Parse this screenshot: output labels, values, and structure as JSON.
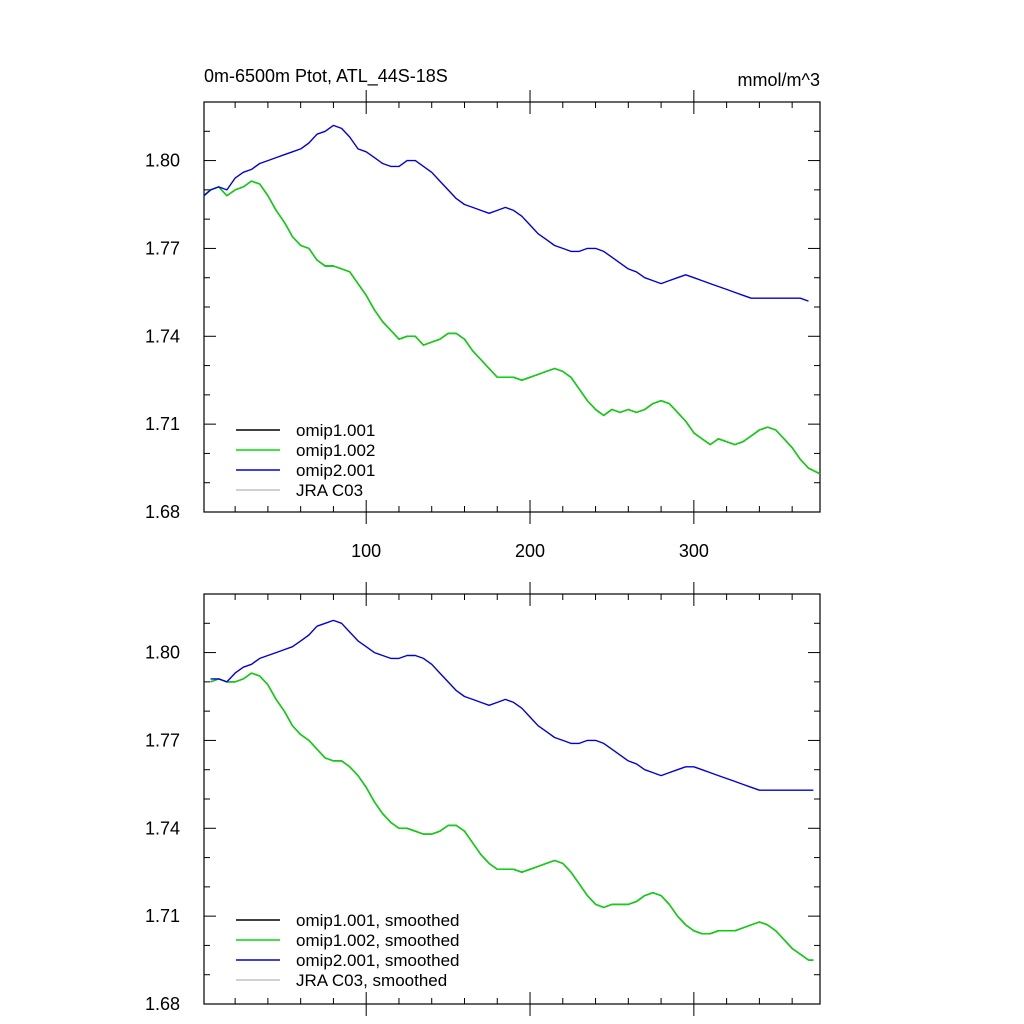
{
  "chart_data": [
    {
      "type": "line",
      "title": "0m-6500m Ptot, ATL_44S-18S",
      "units": "mmol/m^3",
      "xlabel": "",
      "ylabel": "",
      "xlim": [
        1,
        377
      ],
      "ylim": [
        1.68,
        1.82
      ],
      "xticks": [
        100,
        200,
        300
      ],
      "xtick_labels": [
        "100",
        "200",
        "300"
      ],
      "yticks": [
        1.68,
        1.71,
        1.74,
        1.77,
        1.8
      ],
      "ytick_labels": [
        "1.68",
        "1.71",
        "1.74",
        "1.77",
        "1.80"
      ],
      "grid": false,
      "legend_placement": "bottom-left",
      "series": [
        {
          "name": "omip1.001",
          "color": "#000000",
          "x": [
            1,
            5,
            10,
            15,
            20,
            25,
            30,
            35,
            40,
            45,
            50,
            55,
            60,
            65,
            70,
            75,
            80,
            85,
            90,
            95,
            100,
            105,
            110,
            115,
            120,
            125,
            130,
            135,
            140,
            145,
            150,
            155,
            160,
            165,
            170,
            175,
            180,
            185,
            190,
            195,
            200,
            205,
            210,
            215,
            220,
            225,
            230,
            235,
            240,
            245,
            250,
            255,
            260,
            265,
            270,
            275,
            280,
            285,
            290,
            295,
            300,
            305,
            310,
            315,
            320,
            325,
            330,
            335,
            340,
            345,
            350,
            355,
            360,
            365,
            370,
            377
          ],
          "y": [
            1.788,
            1.79,
            1.791,
            1.788,
            1.79,
            1.791,
            1.793,
            1.792,
            1.788,
            1.783,
            1.779,
            1.774,
            1.771,
            1.77,
            1.766,
            1.764,
            1.764,
            1.763,
            1.762,
            1.758,
            1.754,
            1.749,
            1.745,
            1.742,
            1.739,
            1.74,
            1.74,
            1.737,
            1.738,
            1.739,
            1.741,
            1.741,
            1.739,
            1.735,
            1.732,
            1.729,
            1.726,
            1.726,
            1.726,
            1.725,
            1.726,
            1.727,
            1.728,
            1.729,
            1.728,
            1.726,
            1.722,
            1.718,
            1.715,
            1.713,
            1.715,
            1.714,
            1.715,
            1.714,
            1.715,
            1.717,
            1.718,
            1.717,
            1.714,
            1.711,
            1.707,
            1.705,
            1.703,
            1.705,
            1.704,
            1.703,
            1.704,
            1.706,
            1.708,
            1.709,
            1.708,
            1.705,
            1.702,
            1.698,
            1.695,
            1.693
          ]
        },
        {
          "name": "omip1.002",
          "color": "#00dd00",
          "x": [
            1,
            5,
            10,
            15,
            20,
            25,
            30,
            35,
            40,
            45,
            50,
            55,
            60,
            65,
            70,
            75,
            80,
            85,
            90,
            95,
            100,
            105,
            110,
            115,
            120,
            125,
            130,
            135,
            140,
            145,
            150,
            155,
            160,
            165,
            170,
            175,
            180,
            185,
            190,
            195,
            200,
            205,
            210,
            215,
            220,
            225,
            230,
            235,
            240,
            245,
            250,
            255,
            260,
            265,
            270,
            275,
            280,
            285,
            290,
            295,
            300,
            305,
            310,
            315,
            320,
            325,
            330,
            335,
            340,
            345,
            350,
            355,
            360,
            365,
            370,
            377
          ],
          "y": [
            1.788,
            1.79,
            1.791,
            1.788,
            1.79,
            1.791,
            1.793,
            1.792,
            1.788,
            1.783,
            1.779,
            1.774,
            1.771,
            1.77,
            1.766,
            1.764,
            1.764,
            1.763,
            1.762,
            1.758,
            1.754,
            1.749,
            1.745,
            1.742,
            1.739,
            1.74,
            1.74,
            1.737,
            1.738,
            1.739,
            1.741,
            1.741,
            1.739,
            1.735,
            1.732,
            1.729,
            1.726,
            1.726,
            1.726,
            1.725,
            1.726,
            1.727,
            1.728,
            1.729,
            1.728,
            1.726,
            1.722,
            1.718,
            1.715,
            1.713,
            1.715,
            1.714,
            1.715,
            1.714,
            1.715,
            1.717,
            1.718,
            1.717,
            1.714,
            1.711,
            1.707,
            1.705,
            1.703,
            1.705,
            1.704,
            1.703,
            1.704,
            1.706,
            1.708,
            1.709,
            1.708,
            1.705,
            1.702,
            1.698,
            1.695,
            1.693
          ]
        },
        {
          "name": "omip2.001",
          "color": "#0000dd",
          "x": [
            1,
            5,
            10,
            15,
            20,
            25,
            30,
            35,
            40,
            45,
            50,
            55,
            60,
            65,
            70,
            75,
            80,
            85,
            90,
            95,
            100,
            105,
            110,
            115,
            120,
            125,
            130,
            135,
            140,
            145,
            150,
            155,
            160,
            165,
            170,
            175,
            180,
            185,
            190,
            195,
            200,
            205,
            210,
            215,
            220,
            225,
            230,
            235,
            240,
            245,
            250,
            255,
            260,
            265,
            270,
            275,
            280,
            285,
            290,
            295,
            300,
            305,
            310,
            315,
            320,
            325,
            330,
            335,
            340,
            345,
            350,
            355,
            360,
            365,
            370
          ],
          "y": [
            1.788,
            1.79,
            1.791,
            1.79,
            1.794,
            1.796,
            1.797,
            1.799,
            1.8,
            1.801,
            1.802,
            1.803,
            1.804,
            1.806,
            1.809,
            1.81,
            1.812,
            1.811,
            1.808,
            1.804,
            1.803,
            1.801,
            1.799,
            1.798,
            1.798,
            1.8,
            1.8,
            1.798,
            1.796,
            1.793,
            1.79,
            1.787,
            1.785,
            1.784,
            1.783,
            1.782,
            1.783,
            1.784,
            1.783,
            1.781,
            1.778,
            1.775,
            1.773,
            1.771,
            1.77,
            1.769,
            1.769,
            1.77,
            1.77,
            1.769,
            1.767,
            1.765,
            1.763,
            1.762,
            1.76,
            1.759,
            1.758,
            1.759,
            1.76,
            1.761,
            1.76,
            1.759,
            1.758,
            1.757,
            1.756,
            1.755,
            1.754,
            1.753,
            1.753,
            1.753,
            1.753,
            1.753,
            1.753,
            1.753,
            1.752
          ]
        },
        {
          "name": "JRA C03",
          "color": "#c0c0c0",
          "x": [],
          "y": []
        }
      ]
    },
    {
      "type": "line",
      "title": "",
      "units": "",
      "xlabel": "",
      "ylabel": "",
      "xlim": [
        1,
        377
      ],
      "ylim": [
        1.68,
        1.82
      ],
      "xticks": [
        100,
        200,
        300
      ],
      "xtick_labels": [],
      "yticks": [
        1.68,
        1.71,
        1.74,
        1.77,
        1.8
      ],
      "ytick_labels": [
        "1.68",
        "1.71",
        "1.74",
        "1.77",
        "1.80"
      ],
      "grid": false,
      "legend_placement": "bottom-left",
      "series": [
        {
          "name": "omip1.001, smoothed",
          "color": "#000000",
          "x": [
            5,
            10,
            15,
            20,
            25,
            30,
            35,
            40,
            45,
            50,
            55,
            60,
            65,
            70,
            75,
            80,
            85,
            90,
            95,
            100,
            105,
            110,
            115,
            120,
            125,
            130,
            135,
            140,
            145,
            150,
            155,
            160,
            165,
            170,
            175,
            180,
            185,
            190,
            195,
            200,
            205,
            210,
            215,
            220,
            225,
            230,
            235,
            240,
            245,
            250,
            255,
            260,
            265,
            270,
            275,
            280,
            285,
            290,
            295,
            300,
            305,
            310,
            315,
            320,
            325,
            330,
            335,
            340,
            345,
            350,
            355,
            360,
            365,
            370,
            373
          ],
          "y": [
            1.79,
            1.791,
            1.79,
            1.79,
            1.791,
            1.793,
            1.792,
            1.789,
            1.784,
            1.78,
            1.775,
            1.772,
            1.77,
            1.767,
            1.764,
            1.763,
            1.763,
            1.761,
            1.758,
            1.754,
            1.749,
            1.745,
            1.742,
            1.74,
            1.74,
            1.739,
            1.738,
            1.738,
            1.739,
            1.741,
            1.741,
            1.739,
            1.735,
            1.731,
            1.728,
            1.726,
            1.726,
            1.726,
            1.725,
            1.726,
            1.727,
            1.728,
            1.729,
            1.728,
            1.725,
            1.721,
            1.717,
            1.714,
            1.713,
            1.714,
            1.714,
            1.714,
            1.715,
            1.717,
            1.718,
            1.717,
            1.714,
            1.71,
            1.707,
            1.705,
            1.704,
            1.704,
            1.705,
            1.705,
            1.705,
            1.706,
            1.707,
            1.708,
            1.707,
            1.705,
            1.702,
            1.699,
            1.697,
            1.695,
            1.695
          ]
        },
        {
          "name": "omip1.002, smoothed",
          "color": "#00dd00",
          "x": [
            5,
            10,
            15,
            20,
            25,
            30,
            35,
            40,
            45,
            50,
            55,
            60,
            65,
            70,
            75,
            80,
            85,
            90,
            95,
            100,
            105,
            110,
            115,
            120,
            125,
            130,
            135,
            140,
            145,
            150,
            155,
            160,
            165,
            170,
            175,
            180,
            185,
            190,
            195,
            200,
            205,
            210,
            215,
            220,
            225,
            230,
            235,
            240,
            245,
            250,
            255,
            260,
            265,
            270,
            275,
            280,
            285,
            290,
            295,
            300,
            305,
            310,
            315,
            320,
            325,
            330,
            335,
            340,
            345,
            350,
            355,
            360,
            365,
            370,
            373
          ],
          "y": [
            1.79,
            1.791,
            1.79,
            1.79,
            1.791,
            1.793,
            1.792,
            1.789,
            1.784,
            1.78,
            1.775,
            1.772,
            1.77,
            1.767,
            1.764,
            1.763,
            1.763,
            1.761,
            1.758,
            1.754,
            1.749,
            1.745,
            1.742,
            1.74,
            1.74,
            1.739,
            1.738,
            1.738,
            1.739,
            1.741,
            1.741,
            1.739,
            1.735,
            1.731,
            1.728,
            1.726,
            1.726,
            1.726,
            1.725,
            1.726,
            1.727,
            1.728,
            1.729,
            1.728,
            1.725,
            1.721,
            1.717,
            1.714,
            1.713,
            1.714,
            1.714,
            1.714,
            1.715,
            1.717,
            1.718,
            1.717,
            1.714,
            1.71,
            1.707,
            1.705,
            1.704,
            1.704,
            1.705,
            1.705,
            1.705,
            1.706,
            1.707,
            1.708,
            1.707,
            1.705,
            1.702,
            1.699,
            1.697,
            1.695,
            1.695
          ]
        },
        {
          "name": "omip2.001, smoothed",
          "color": "#0000dd",
          "x": [
            5,
            10,
            15,
            20,
            25,
            30,
            35,
            40,
            45,
            50,
            55,
            60,
            65,
            70,
            75,
            80,
            85,
            90,
            95,
            100,
            105,
            110,
            115,
            120,
            125,
            130,
            135,
            140,
            145,
            150,
            155,
            160,
            165,
            170,
            175,
            180,
            185,
            190,
            195,
            200,
            205,
            210,
            215,
            220,
            225,
            230,
            235,
            240,
            245,
            250,
            255,
            260,
            265,
            270,
            275,
            280,
            285,
            290,
            295,
            300,
            305,
            310,
            315,
            320,
            325,
            330,
            335,
            340,
            345,
            350,
            355,
            360,
            365,
            370,
            373
          ],
          "y": [
            1.791,
            1.791,
            1.79,
            1.793,
            1.795,
            1.796,
            1.798,
            1.799,
            1.8,
            1.801,
            1.802,
            1.804,
            1.806,
            1.809,
            1.81,
            1.811,
            1.81,
            1.807,
            1.804,
            1.802,
            1.8,
            1.799,
            1.798,
            1.798,
            1.799,
            1.799,
            1.798,
            1.796,
            1.793,
            1.79,
            1.787,
            1.785,
            1.784,
            1.783,
            1.782,
            1.783,
            1.784,
            1.783,
            1.781,
            1.778,
            1.775,
            1.773,
            1.771,
            1.77,
            1.769,
            1.769,
            1.77,
            1.77,
            1.769,
            1.767,
            1.765,
            1.763,
            1.762,
            1.76,
            1.759,
            1.758,
            1.759,
            1.76,
            1.761,
            1.761,
            1.76,
            1.759,
            1.758,
            1.757,
            1.756,
            1.755,
            1.754,
            1.753,
            1.753,
            1.753,
            1.753,
            1.753,
            1.753,
            1.753,
            1.753
          ]
        },
        {
          "name": "JRA C03, smoothed",
          "color": "#c0c0c0",
          "x": [],
          "y": []
        }
      ]
    }
  ]
}
